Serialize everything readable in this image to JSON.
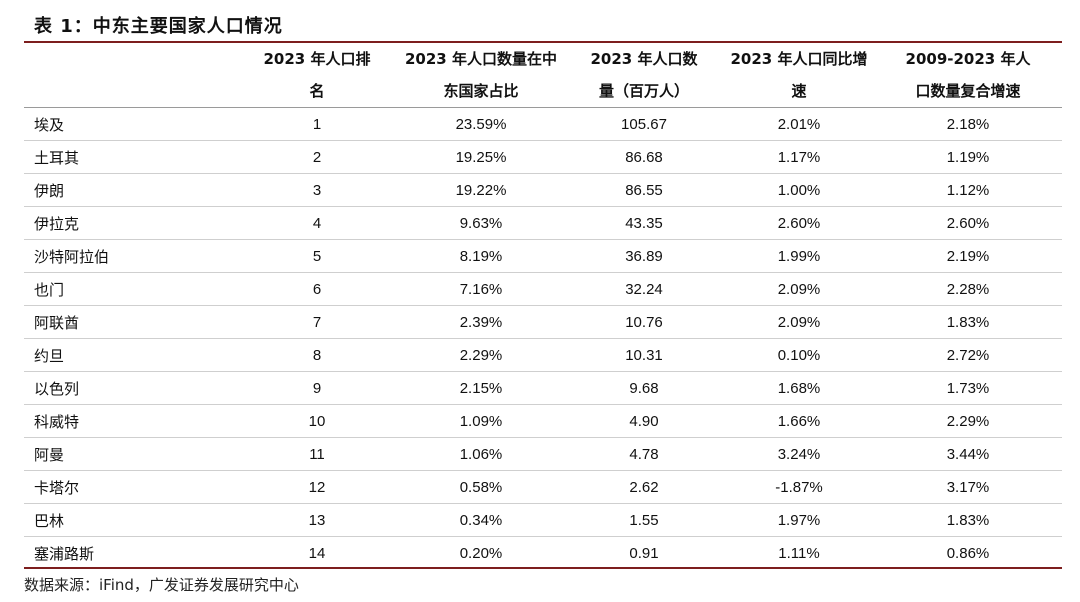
{
  "title": "表 1：中东主要国家人口情况",
  "columns": [
    {
      "line1": "",
      "line2": ""
    },
    {
      "line1": "2023 年人口排",
      "line2": "名"
    },
    {
      "line1": "2023 年人口数量在中",
      "line2": "东国家占比"
    },
    {
      "line1": "2023 年人口数",
      "line2": "量（百万人）"
    },
    {
      "line1": "2023 年人口同比增",
      "line2": "速"
    },
    {
      "line1": "2009-2023 年人",
      "line2": "口数量复合增速"
    }
  ],
  "rows": [
    [
      "埃及",
      "1",
      "23.59%",
      "105.67",
      "2.01%",
      "2.18%"
    ],
    [
      "土耳其",
      "2",
      "19.25%",
      "86.68",
      "1.17%",
      "1.19%"
    ],
    [
      "伊朗",
      "3",
      "19.22%",
      "86.55",
      "1.00%",
      "1.12%"
    ],
    [
      "伊拉克",
      "4",
      "9.63%",
      "43.35",
      "2.60%",
      "2.60%"
    ],
    [
      "沙特阿拉伯",
      "5",
      "8.19%",
      "36.89",
      "1.99%",
      "2.19%"
    ],
    [
      "也门",
      "6",
      "7.16%",
      "32.24",
      "2.09%",
      "2.28%"
    ],
    [
      "阿联酋",
      "7",
      "2.39%",
      "10.76",
      "2.09%",
      "1.83%"
    ],
    [
      "约旦",
      "8",
      "2.29%",
      "10.31",
      "0.10%",
      "2.72%"
    ],
    [
      "以色列",
      "9",
      "2.15%",
      "9.68",
      "1.68%",
      "1.73%"
    ],
    [
      "科威特",
      "10",
      "1.09%",
      "4.90",
      "1.66%",
      "2.29%"
    ],
    [
      "阿曼",
      "11",
      "1.06%",
      "4.78",
      "3.24%",
      "3.44%"
    ],
    [
      "卡塔尔",
      "12",
      "0.58%",
      "2.62",
      "-1.87%",
      "3.17%"
    ],
    [
      "巴林",
      "13",
      "0.34%",
      "1.55",
      "1.97%",
      "1.83%"
    ],
    [
      "塞浦路斯",
      "14",
      "0.20%",
      "0.91",
      "1.11%",
      "0.86%"
    ]
  ],
  "source": "数据来源：iFind，广发证券发展研究中心"
}
